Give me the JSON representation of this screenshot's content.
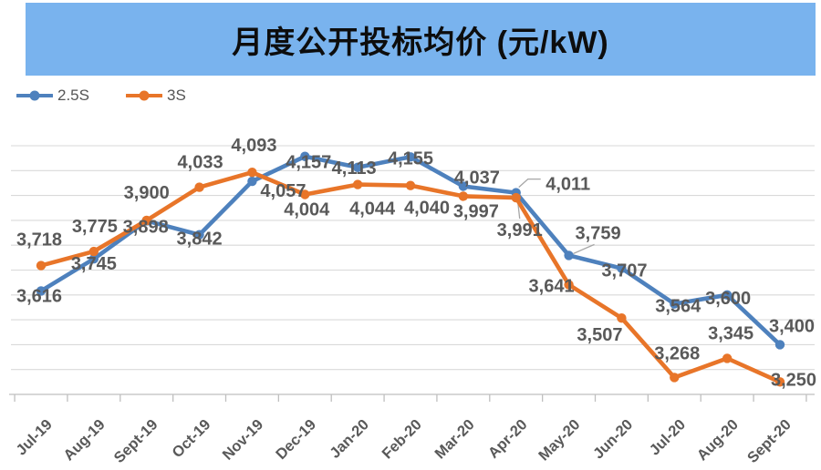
{
  "title": "月度公开投标均价 (元/kW)",
  "chart_data": {
    "type": "line",
    "title": "月度公开投标均价 (元/kW)",
    "categories": [
      "Jul-19",
      "Aug-19",
      "Sept-19",
      "Oct-19",
      "Nov-19",
      "Dec-19",
      "Jan-20",
      "Feb-20",
      "Mar-20",
      "Apr-20",
      "May-20",
      "Jun-20",
      "Jul-20",
      "Aug-20",
      "Sept-20"
    ],
    "series": [
      {
        "name": "2.5S",
        "color": "#4E81BD",
        "values": [
          3616,
          3745,
          3898,
          3842,
          4057,
          4157,
          4113,
          4155,
          4037,
          4011,
          3759,
          3707,
          3564,
          3600,
          3400
        ]
      },
      {
        "name": "3S",
        "color": "#E87529",
        "values": [
          3718,
          3775,
          3900,
          4033,
          4093,
          4004,
          4044,
          4040,
          3997,
          3991,
          3641,
          3507,
          3268,
          3345,
          3250
        ]
      }
    ],
    "ylim": [
      3200,
      4290
    ],
    "grid": {
      "visible": true,
      "step": 100,
      "top": 4200,
      "color": "#D9D9D9"
    },
    "axis_color": "#BFBFBF",
    "label_color": "#595959",
    "data_labels": true,
    "label_format": "#,##0",
    "legend_position": "top-left",
    "x_label_rotation": -45,
    "title_band_color": "#79B3EE"
  }
}
